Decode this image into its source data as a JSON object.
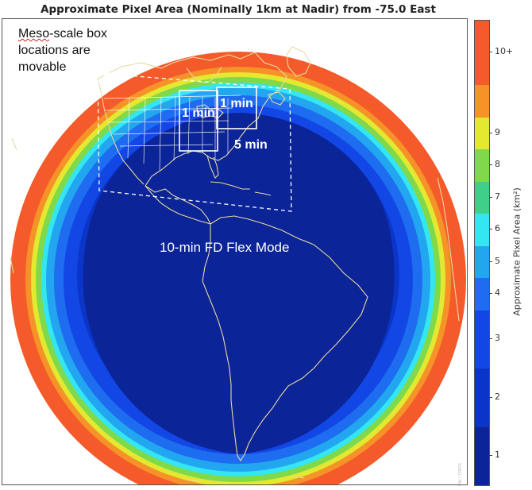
{
  "title": "Approximate Pixel Area (Nominally 1km at Nadir) from -75.0 East",
  "annotations": {
    "meso_note_lines": [
      "Meso-scale box",
      "locations are",
      "movable"
    ],
    "meso_note_squiggle_word": "Meso",
    "meso_box_1_label": "1 min",
    "meso_box_2_label": "1 min",
    "conus_label": "5 min",
    "full_disk_label": "10-min FD Flex Mode"
  },
  "colorbar": {
    "title": "Approximate Pixel Area (km²)",
    "labels": [
      "1",
      "2",
      "3",
      "4",
      "5",
      "6",
      "7",
      "8",
      "9",
      "10+"
    ],
    "colors": [
      "#0b2497",
      "#0b35c8",
      "#1247e6",
      "#1e6cf0",
      "#23a6f0",
      "#34e6f2",
      "#40cf88",
      "#7fd94a",
      "#e3e831",
      "#f59328",
      "#f45a2a"
    ]
  },
  "map": {
    "ring_colors": {
      "outer": "#f45a2a",
      "orange": "#f59328",
      "yellow": "#e3e831",
      "green": "#7fd94a",
      "cyan": "#34e6f2",
      "light_blue": "#23a6f0",
      "mid_blue": "#1e6cf0",
      "blue": "#1247e6",
      "deep_blue": "#0b35c8",
      "core": "#0b2497"
    },
    "coastline_color": "#e8d9a0"
  },
  "credit": "UW / CIMSS"
}
